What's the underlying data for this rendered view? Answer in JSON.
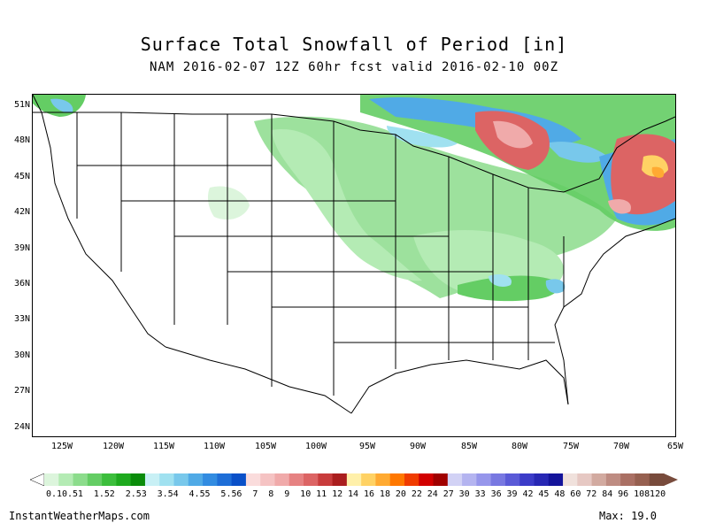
{
  "title": "Surface Total Snowfall of Period [in]",
  "subtitle": "NAM 2016-02-07 12Z 60hr fcst valid 2016-02-10 00Z",
  "map": {
    "lat_labels": [
      "51N",
      "48N",
      "45N",
      "42N",
      "39N",
      "36N",
      "33N",
      "30N",
      "27N",
      "24N"
    ],
    "lon_labels": [
      "125W",
      "120W",
      "115W",
      "110W",
      "105W",
      "100W",
      "95W",
      "90W",
      "85W",
      "80W",
      "75W",
      "70W",
      "65W"
    ]
  },
  "colorbar": {
    "labels": [
      "0.1",
      "0.5",
      "1",
      "1.5",
      "2",
      "2.5",
      "3",
      "3.5",
      "4",
      "4.5",
      "5",
      "5.5",
      "6",
      "7",
      "8",
      "9",
      "10",
      "11",
      "12",
      "14",
      "16",
      "18",
      "20",
      "22",
      "24",
      "27",
      "30",
      "33",
      "36",
      "39",
      "42",
      "45",
      "48",
      "60",
      "72",
      "84",
      "96",
      "108",
      "120"
    ],
    "colors": [
      "#dcf5dc",
      "#b4ebb4",
      "#8cdc8c",
      "#64cd64",
      "#3cbe3c",
      "#1eaa1e",
      "#0a8c0a",
      "#c8f0f5",
      "#a0e1f0",
      "#78c8eb",
      "#50aae6",
      "#328ce1",
      "#1e6ed7",
      "#0a50c8",
      "#fadcdc",
      "#f5c3c3",
      "#f0aaaa",
      "#e68282",
      "#dc6464",
      "#c83c3c",
      "#aa1e1e",
      "#fff0aa",
      "#ffd264",
      "#ffaa32",
      "#ff7800",
      "#f03c00",
      "#d20000",
      "#a00000",
      "#d2d2f5",
      "#b4b4f0",
      "#9696eb",
      "#7878e1",
      "#5a5ad7",
      "#3c3cc8",
      "#2828b4",
      "#14149b",
      "#f0e1dc",
      "#e6c8c3",
      "#d2aaa0",
      "#be8c82",
      "#aa7064",
      "#966050",
      "#784b3c"
    ]
  },
  "footer": {
    "site": "InstantWeatherMaps.com",
    "max_text": "Max:  19.0"
  }
}
